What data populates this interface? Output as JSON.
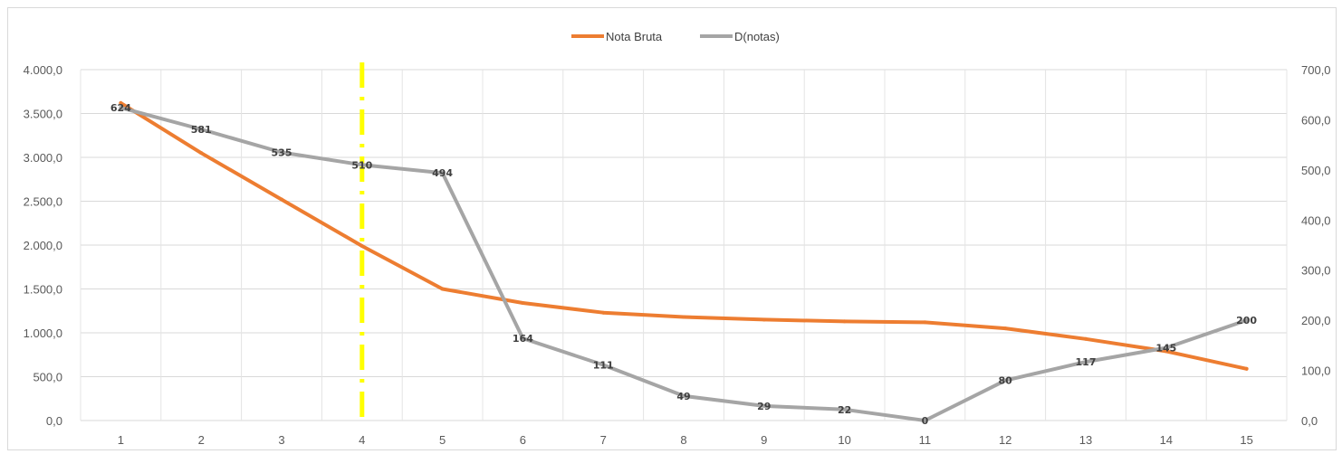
{
  "chart_data": {
    "type": "line",
    "categories": [
      "1",
      "2",
      "3",
      "4",
      "5",
      "6",
      "7",
      "8",
      "9",
      "10",
      "11",
      "12",
      "13",
      "14",
      "15"
    ],
    "y_left": {
      "min": 0,
      "max": 4000,
      "step": 500,
      "tick_labels": [
        "0,0",
        "500,0",
        "1.000,0",
        "1.500,0",
        "2.000,0",
        "2.500,0",
        "3.000,0",
        "3.500,0",
        "4.000,0"
      ]
    },
    "y_right": {
      "min": 0,
      "max": 700,
      "step": 100,
      "tick_labels": [
        "0,0",
        "100,0",
        "200,0",
        "300,0",
        "400,0",
        "500,0",
        "600,0",
        "700,0"
      ]
    },
    "grid": true,
    "legend_position": "top",
    "series": [
      {
        "name": "Nota Bruta",
        "axis": "left",
        "color": "#ed7d31",
        "values": [
          3620,
          3050,
          2520,
          1990,
          1500,
          1340,
          1230,
          1180,
          1150,
          1130,
          1120,
          1050,
          930,
          790,
          590
        ],
        "show_labels": false
      },
      {
        "name": "D(notas)",
        "axis": "right",
        "color": "#a5a5a5",
        "values": [
          624,
          581,
          535,
          510,
          494,
          164,
          111,
          49,
          29,
          22,
          0,
          80,
          117,
          145,
          200
        ],
        "labels": [
          "624",
          "581",
          "535",
          "510",
          "494",
          "164",
          "111",
          "49",
          "29",
          "22",
          "0",
          "80",
          "117",
          "145",
          "200"
        ],
        "show_labels": true
      }
    ],
    "reference_line": {
      "category": "4",
      "color": "#ffff00",
      "style": "dash-dot"
    }
  }
}
